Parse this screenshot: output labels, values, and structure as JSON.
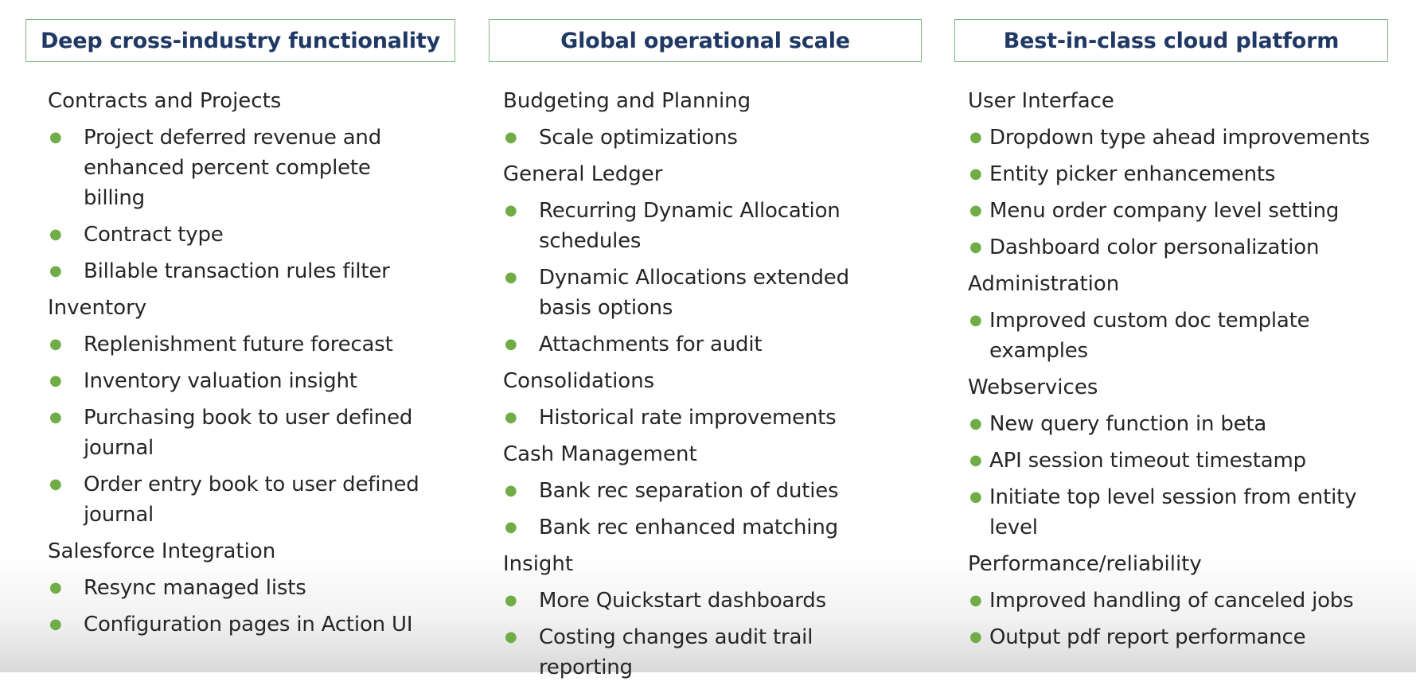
{
  "columns": [
    {
      "header": "Deep cross-industry functionality",
      "sections": [
        {
          "title": "Contracts and Projects",
          "items": [
            "Project deferred revenue and enhanced percent complete billing",
            "Contract type",
            "Billable transaction rules filter"
          ]
        },
        {
          "title": "Inventory",
          "items": [
            "Replenishment future forecast",
            "Inventory valuation insight",
            "Purchasing book to user defined journal",
            "Order entry book to user defined journal"
          ]
        },
        {
          "title": "Salesforce Integration",
          "items": [
            "Resync managed lists",
            "Configuration pages in Action UI"
          ]
        }
      ]
    },
    {
      "header": "Global operational scale",
      "sections": [
        {
          "title": "Budgeting and Planning",
          "items": [
            "Scale optimizations"
          ]
        },
        {
          "title": "General Ledger",
          "items": [
            "Recurring Dynamic Allocation schedules",
            "Dynamic Allocations extended basis options",
            "Attachments for audit"
          ]
        },
        {
          "title": "Consolidations",
          "items": [
            "Historical rate improvements"
          ]
        },
        {
          "title": "Cash Management",
          "items": [
            "Bank rec separation of duties",
            "Bank rec enhanced matching"
          ]
        },
        {
          "title": "Insight",
          "items": [
            "More Quickstart dashboards",
            "Costing changes audit trail reporting"
          ]
        }
      ]
    },
    {
      "header": "Best-in-class cloud platform",
      "sections": [
        {
          "title": "User Interface",
          "items": [
            "Dropdown type ahead improvements",
            "Entity picker enhancements",
            "Menu order company level setting",
            "Dashboard color personalization"
          ]
        },
        {
          "title": "Administration",
          "items": [
            "Improved custom doc template examples"
          ]
        },
        {
          "title": "Webservices",
          "items": [
            "New query function in beta",
            "API session timeout timestamp",
            "Initiate top level session from entity level"
          ]
        },
        {
          "title": "Performance/reliability",
          "items": [
            "Improved handling of canceled jobs",
            "Output pdf report performance"
          ]
        }
      ]
    }
  ],
  "bullet_color": "#70ad47",
  "header_text_color": "#1f3864",
  "header_border_color": "#7fb57f"
}
